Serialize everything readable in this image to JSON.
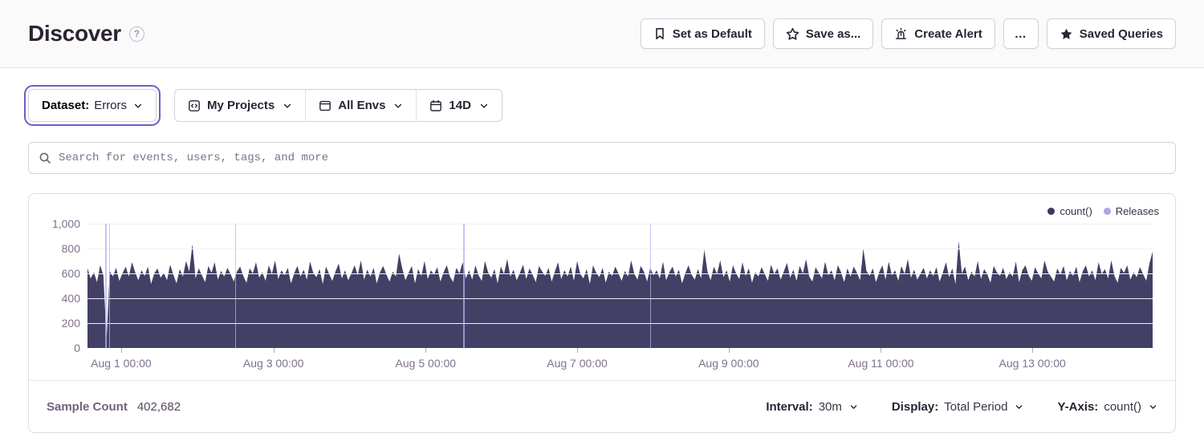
{
  "header": {
    "title": "Discover",
    "help_symbol": "?",
    "actions": [
      {
        "label": "Set as Default",
        "icon": "bookmark-icon"
      },
      {
        "label": "Save as...",
        "icon": "star-outline-icon"
      },
      {
        "label": "Create Alert",
        "icon": "siren-icon"
      },
      {
        "label": "…",
        "icon": "ellipsis-icon"
      },
      {
        "label": "Saved Queries",
        "icon": "star-filled-icon"
      }
    ]
  },
  "filters": {
    "dataset": {
      "label": "Dataset:",
      "value": "Errors"
    },
    "projects": {
      "label": "My Projects",
      "icon": "project-code-icon"
    },
    "environments": {
      "label": "All Envs",
      "icon": "window-icon"
    },
    "date_range": {
      "label": "14D",
      "icon": "calendar-icon"
    }
  },
  "search": {
    "placeholder": "Search for events, users, tags, and more"
  },
  "chart_data": {
    "type": "area",
    "title": "",
    "xlabel": "",
    "ylabel": "",
    "ylim": [
      0,
      1000
    ],
    "grid": true,
    "legend_position": "top-right",
    "legend": [
      {
        "label": "count()",
        "color": "#3B3561"
      },
      {
        "label": "Releases",
        "color": "#B0A4E8"
      }
    ],
    "fill_color": "#434066",
    "yticks": [
      {
        "label": "1,000",
        "value": 1000
      },
      {
        "label": "800",
        "value": 800
      },
      {
        "label": "600",
        "value": 600
      },
      {
        "label": "400",
        "value": 400
      },
      {
        "label": "200",
        "value": 200
      },
      {
        "label": "0",
        "value": 0
      }
    ],
    "xticks": [
      {
        "label": "Aug 1 00:00",
        "pos": 0.0316
      },
      {
        "label": "Aug 3 00:00",
        "pos": 0.1746
      },
      {
        "label": "Aug 5 00:00",
        "pos": 0.3175
      },
      {
        "label": "Aug 7 00:00",
        "pos": 0.4597
      },
      {
        "label": "Aug 9 00:00",
        "pos": 0.602
      },
      {
        "label": "Aug 11 00:00",
        "pos": 0.7449
      },
      {
        "label": "Aug 13 00:00",
        "pos": 0.8871
      }
    ],
    "release_positions": [
      0.0166,
      0.0203,
      0.1384,
      0.3529,
      0.5282
    ],
    "series": [
      {
        "name": "count()",
        "values": [
          640,
          560,
          610,
          530,
          665,
          585,
          70,
          620,
          575,
          645,
          540,
          600,
          655,
          575,
          690,
          610,
          545,
          625,
          580,
          655,
          515,
          600,
          640,
          565,
          605,
          545,
          670,
          590,
          520,
          635,
          575,
          700,
          615,
          835,
          560,
          640,
          585,
          530,
          660,
          605,
          690,
          550,
          620,
          575,
          645,
          595,
          535,
          615,
          655,
          580,
          525,
          640,
          600,
          690,
          565,
          610,
          540,
          665,
          595,
          705,
          555,
          625,
          585,
          645,
          520,
          600,
          660,
          575,
          630,
          550,
          695,
          605,
          570,
          635,
          515,
          655,
          595,
          540,
          615,
          680,
          560,
          625,
          545,
          600,
          665,
          585,
          705,
          550,
          630,
          575,
          645,
          520,
          610,
          660,
          590,
          535,
          615,
          575,
          760,
          640,
          545,
          605,
          660,
          520,
          635,
          580,
          700,
          555,
          625,
          590,
          650,
          535,
          610,
          665,
          575,
          530,
          645,
          600,
          690,
          560,
          625,
          550,
          665,
          585,
          540,
          700,
          610,
          565,
          635,
          520,
          655,
          595,
          715,
          575,
          630,
          545,
          605,
          670,
          555,
          640,
          590,
          530,
          660,
          615,
          580,
          645,
          535,
          615,
          690,
          555,
          625,
          575,
          655,
          540,
          700,
          595,
          560,
          635,
          515,
          665,
          605,
          570,
          645,
          525,
          615,
          580,
          655,
          600,
          540,
          620,
          575,
          705,
          595,
          550,
          660,
          615,
          535,
          645,
          585,
          625,
          560,
          695,
          545,
          610,
          655,
          575,
          630,
          520,
          600,
          665,
          590,
          550,
          635,
          560,
          790,
          615,
          545,
          655,
          595,
          705,
          570,
          625,
          535,
          665,
          600,
          555,
          690,
          580,
          640,
          525,
          610,
          575,
          650,
          595,
          540,
          670,
          595,
          640,
          550,
          615,
          685,
          565,
          630,
          540,
          660,
          600,
          715,
          575,
          535,
          650,
          605,
          560,
          695,
          585,
          625,
          545,
          665,
          610,
          530,
          640,
          575,
          655,
          605,
          545,
          800,
          620,
          580,
          640,
          530,
          610,
          665,
          550,
          695,
          585,
          625,
          540,
          660,
          595,
          715,
          565,
          630,
          550,
          600,
          645,
          560,
          625,
          580,
          650,
          535,
          605,
          690,
          570,
          640,
          515,
          860,
          600,
          655,
          545,
          615,
          575,
          700,
          555,
          635,
          595,
          525,
          660,
          610,
          580,
          645,
          555,
          610,
          575,
          695,
          530,
          625,
          665,
          585,
          540,
          650,
          600,
          560,
          705,
          615,
          575,
          535,
          640,
          590,
          660,
          545,
          620,
          580,
          655,
          530,
          615,
          665,
          575,
          625,
          545,
          690,
          595,
          635,
          560,
          705,
          580,
          525,
          645,
          605,
          665,
          550,
          610,
          570,
          650,
          595,
          540,
          680,
          775
        ]
      }
    ]
  },
  "footer": {
    "sample_count_label": "Sample Count",
    "sample_count_value": "402,682",
    "interval_label": "Interval:",
    "interval_value": "30m",
    "display_label": "Display:",
    "display_value": "Total Period",
    "yaxis_label": "Y-Axis:",
    "yaxis_value": "count()"
  },
  "colors": {
    "accent_purple": "#6C5FC7",
    "chart_fill": "#434066",
    "release_line": "#B9AEEC",
    "muted_text": "#80708F",
    "dark_text": "#2B2233",
    "header_bg": "#FAFAFB",
    "border": "#D5CEDC"
  }
}
